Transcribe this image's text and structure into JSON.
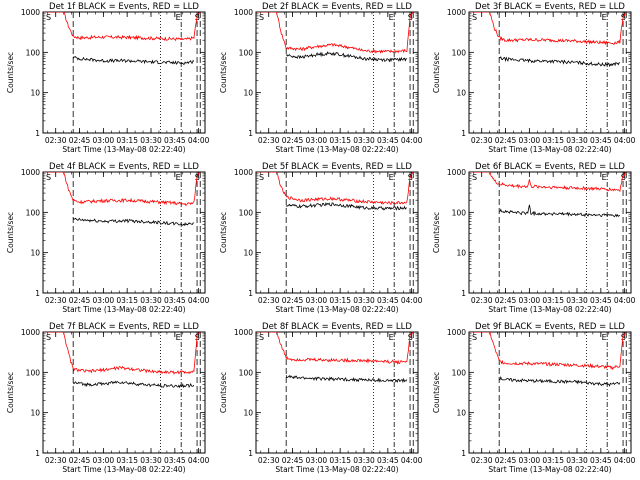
{
  "figure": {
    "colors": {
      "events": "#000000",
      "lld": "#ff0000",
      "axes": "#000000",
      "background": "#ffffff"
    }
  },
  "chart_data": [
    {
      "type": "line",
      "title": "Det 1f BLACK = Events, RED = LLD",
      "xlabel": "Start Time (13-May-08 02:22:40)",
      "ylabel": "Counts/sec",
      "ylog": true,
      "ylim": [
        1,
        1000
      ],
      "yticks": [
        "1",
        "10",
        "100",
        "1000"
      ],
      "xlim": [
        "02:22",
        "04:04"
      ],
      "xticks": [
        "02:30",
        "02:45",
        "03:00",
        "03:15",
        "03:30",
        "03:45",
        "04:00"
      ],
      "markers": [
        {
          "time": "02:41",
          "style": "dash",
          "label": ""
        },
        {
          "time": "03:36",
          "style": "dot",
          "label": ""
        },
        {
          "time": "03:49",
          "style": "dashdot",
          "label": "E"
        },
        {
          "time": "03:59",
          "style": "dash",
          "label": ""
        },
        {
          "time": "04:01",
          "style": "dash",
          "label": "S"
        }
      ],
      "series": [
        {
          "name": "LLD",
          "color": "#ff0000",
          "x": [
            "02:23",
            "02:30",
            "02:35",
            "02:38",
            "02:41",
            "02:45",
            "03:00",
            "03:15",
            "03:30",
            "03:45",
            "03:52",
            "03:57",
            "03:59",
            "04:01"
          ],
          "y": [
            1000,
            1000,
            1000,
            450,
            250,
            230,
            240,
            235,
            225,
            215,
            210,
            230,
            800,
            1000
          ]
        },
        {
          "name": "Events",
          "color": "#000000",
          "x": [
            "02:41",
            "02:45",
            "03:00",
            "03:15",
            "03:30",
            "03:45",
            "03:52",
            "03:57"
          ],
          "y": [
            75,
            70,
            62,
            62,
            58,
            55,
            55,
            60
          ]
        }
      ]
    },
    {
      "type": "line",
      "title": "Det 2f BLACK = Events, RED = LLD",
      "xlabel": "Start Time (13-May-08 02:22:40)",
      "ylabel": "Counts/sec",
      "ylog": true,
      "ylim": [
        1,
        1000
      ],
      "yticks": [
        "1",
        "10",
        "100",
        "1000"
      ],
      "xlim": [
        "02:22",
        "04:04"
      ],
      "xticks": [
        "02:30",
        "02:45",
        "03:00",
        "03:15",
        "03:30",
        "03:45",
        "04:00"
      ],
      "markers": [
        {
          "time": "02:41",
          "style": "dash",
          "label": ""
        },
        {
          "time": "03:36",
          "style": "dot",
          "label": ""
        },
        {
          "time": "03:49",
          "style": "dashdot",
          "label": "E"
        },
        {
          "time": "03:59",
          "style": "dash",
          "label": ""
        },
        {
          "time": "04:01",
          "style": "dash",
          "label": "S"
        }
      ],
      "series": [
        {
          "name": "LLD",
          "color": "#ff0000",
          "x": [
            "02:23",
            "02:30",
            "02:35",
            "02:38",
            "02:41",
            "02:50",
            "03:00",
            "03:10",
            "03:20",
            "03:30",
            "03:45",
            "03:57",
            "03:59",
            "04:01"
          ],
          "y": [
            1000,
            1000,
            1000,
            300,
            130,
            120,
            140,
            155,
            135,
            110,
            105,
            110,
            800,
            1000
          ]
        },
        {
          "name": "Events",
          "color": "#000000",
          "x": [
            "02:41",
            "02:50",
            "03:00",
            "03:10",
            "03:20",
            "03:30",
            "03:45",
            "03:57"
          ],
          "y": [
            85,
            75,
            88,
            95,
            82,
            70,
            65,
            68
          ]
        }
      ]
    },
    {
      "type": "line",
      "title": "Det 3f BLACK = Events, RED = LLD",
      "xlabel": "Start Time (13-May-08 02:22:40)",
      "ylabel": "Counts/sec",
      "ylog": true,
      "ylim": [
        1,
        1000
      ],
      "yticks": [
        "1",
        "10",
        "100",
        "1000"
      ],
      "xlim": [
        "02:22",
        "04:04"
      ],
      "xticks": [
        "02:30",
        "02:45",
        "03:00",
        "03:15",
        "03:30",
        "03:45",
        "04:00"
      ],
      "markers": [
        {
          "time": "02:41",
          "style": "dash",
          "label": ""
        },
        {
          "time": "03:36",
          "style": "dot",
          "label": ""
        },
        {
          "time": "03:49",
          "style": "dashdot",
          "label": "E"
        },
        {
          "time": "03:59",
          "style": "dash",
          "label": ""
        },
        {
          "time": "04:01",
          "style": "dash",
          "label": "S"
        }
      ],
      "series": [
        {
          "name": "LLD",
          "color": "#ff0000",
          "x": [
            "02:23",
            "02:30",
            "02:35",
            "02:38",
            "02:41",
            "02:45",
            "03:00",
            "03:15",
            "03:30",
            "03:45",
            "03:52",
            "03:57",
            "03:59",
            "04:01"
          ],
          "y": [
            1000,
            1000,
            1000,
            400,
            230,
            200,
            205,
            200,
            190,
            175,
            170,
            180,
            800,
            1000
          ]
        },
        {
          "name": "Events",
          "color": "#000000",
          "x": [
            "02:41",
            "02:45",
            "03:00",
            "03:15",
            "03:30",
            "03:45",
            "03:52",
            "03:57"
          ],
          "y": [
            72,
            68,
            62,
            60,
            56,
            50,
            50,
            55
          ]
        }
      ]
    },
    {
      "type": "line",
      "title": "Det 4f BLACK = Events, RED = LLD",
      "xlabel": "Start Time (13-May-08 02:22:40)",
      "ylabel": "Counts/sec",
      "ylog": true,
      "ylim": [
        1,
        1000
      ],
      "yticks": [
        "1",
        "10",
        "100",
        "1000"
      ],
      "xlim": [
        "02:22",
        "04:04"
      ],
      "xticks": [
        "02:30",
        "02:45",
        "03:00",
        "03:15",
        "03:30",
        "03:45",
        "04:00"
      ],
      "markers": [
        {
          "time": "02:41",
          "style": "dash",
          "label": ""
        },
        {
          "time": "03:36",
          "style": "dot",
          "label": ""
        },
        {
          "time": "03:49",
          "style": "dashdot",
          "label": "E"
        },
        {
          "time": "03:59",
          "style": "dash",
          "label": ""
        },
        {
          "time": "04:01",
          "style": "dash",
          "label": "S"
        }
      ],
      "series": [
        {
          "name": "LLD",
          "color": "#ff0000",
          "x": [
            "02:23",
            "02:30",
            "02:35",
            "02:38",
            "02:41",
            "02:45",
            "03:00",
            "03:15",
            "03:30",
            "03:45",
            "03:52",
            "03:57",
            "03:59",
            "04:01"
          ],
          "y": [
            1000,
            1000,
            1000,
            380,
            200,
            180,
            195,
            200,
            185,
            170,
            160,
            170,
            800,
            1000
          ]
        },
        {
          "name": "Events",
          "color": "#000000",
          "x": [
            "02:41",
            "02:45",
            "03:00",
            "03:15",
            "03:30",
            "03:45",
            "03:52",
            "03:57"
          ],
          "y": [
            68,
            65,
            60,
            62,
            58,
            52,
            50,
            55
          ]
        }
      ]
    },
    {
      "type": "line",
      "title": "Det 5f BLACK = Events, RED = LLD",
      "xlabel": "Start Time (13-May-08 02:22:40)",
      "ylabel": "Counts/sec",
      "ylog": true,
      "ylim": [
        1,
        1000
      ],
      "yticks": [
        "1",
        "10",
        "100",
        "1000"
      ],
      "xlim": [
        "02:22",
        "04:04"
      ],
      "xticks": [
        "02:30",
        "02:45",
        "03:00",
        "03:15",
        "03:30",
        "03:45",
        "04:00"
      ],
      "markers": [
        {
          "time": "02:41",
          "style": "dash",
          "label": ""
        },
        {
          "time": "03:36",
          "style": "dot",
          "label": ""
        },
        {
          "time": "03:49",
          "style": "dashdot",
          "label": "E"
        },
        {
          "time": "03:59",
          "style": "dash",
          "label": ""
        },
        {
          "time": "04:01",
          "style": "dash",
          "label": "S"
        }
      ],
      "series": [
        {
          "name": "LLD",
          "color": "#ff0000",
          "x": [
            "02:23",
            "02:30",
            "02:35",
            "02:38",
            "02:41",
            "02:50",
            "03:00",
            "03:10",
            "03:20",
            "03:30",
            "03:45",
            "03:57",
            "03:59",
            "04:01"
          ],
          "y": [
            1000,
            1000,
            1000,
            400,
            240,
            200,
            210,
            220,
            200,
            185,
            170,
            175,
            800,
            1000
          ]
        },
        {
          "name": "Events",
          "color": "#000000",
          "x": [
            "02:41",
            "02:50",
            "03:00",
            "03:10",
            "03:20",
            "03:30",
            "03:45",
            "03:57"
          ],
          "y": [
            150,
            140,
            150,
            160,
            145,
            130,
            125,
            130
          ]
        }
      ]
    },
    {
      "type": "line",
      "title": "Det 6f BLACK = Events, RED = LLD",
      "xlabel": "Start Time (13-May-08 02:22:40)",
      "ylabel": "Counts/sec",
      "ylog": true,
      "ylim": [
        1,
        1000
      ],
      "yticks": [
        "1",
        "10",
        "100",
        "1000"
      ],
      "xlim": [
        "02:22",
        "04:04"
      ],
      "xticks": [
        "02:30",
        "02:45",
        "03:00",
        "03:15",
        "03:30",
        "03:45",
        "04:00"
      ],
      "markers": [
        {
          "time": "02:41",
          "style": "dash",
          "label": ""
        },
        {
          "time": "03:36",
          "style": "dot",
          "label": ""
        },
        {
          "time": "03:49",
          "style": "dashdot",
          "label": "E"
        },
        {
          "time": "03:59",
          "style": "dash",
          "label": ""
        },
        {
          "time": "04:01",
          "style": "dash",
          "label": "S"
        }
      ],
      "series": [
        {
          "name": "LLD",
          "color": "#ff0000",
          "x": [
            "02:23",
            "02:30",
            "02:35",
            "02:38",
            "02:41",
            "02:50",
            "02:59",
            "03:00",
            "03:01",
            "03:15",
            "03:30",
            "03:45",
            "03:57",
            "03:59",
            "04:01"
          ],
          "y": [
            1000,
            1000,
            1000,
            600,
            500,
            450,
            440,
            650,
            440,
            420,
            400,
            380,
            360,
            800,
            1000
          ]
        },
        {
          "name": "Events",
          "color": "#000000",
          "x": [
            "02:41",
            "02:50",
            "02:59",
            "03:00",
            "03:01",
            "03:15",
            "03:30",
            "03:45",
            "03:57"
          ],
          "y": [
            110,
            100,
            95,
            160,
            95,
            92,
            88,
            85,
            85
          ]
        }
      ]
    },
    {
      "type": "line",
      "title": "Det 7f BLACK = Events, RED = LLD",
      "xlabel": "Start Time (13-May-08 02:22:40)",
      "ylabel": "Counts/sec",
      "ylog": true,
      "ylim": [
        1,
        1000
      ],
      "yticks": [
        "1",
        "10",
        "100",
        "1000"
      ],
      "xlim": [
        "02:22",
        "04:04"
      ],
      "xticks": [
        "02:30",
        "02:45",
        "03:00",
        "03:15",
        "03:30",
        "03:45",
        "04:00"
      ],
      "markers": [
        {
          "time": "02:41",
          "style": "dash",
          "label": ""
        },
        {
          "time": "03:36",
          "style": "dot",
          "label": ""
        },
        {
          "time": "03:49",
          "style": "dashdot",
          "label": "E"
        },
        {
          "time": "03:59",
          "style": "dash",
          "label": ""
        },
        {
          "time": "04:01",
          "style": "dash",
          "label": "S"
        }
      ],
      "series": [
        {
          "name": "LLD",
          "color": "#ff0000",
          "x": [
            "02:23",
            "02:30",
            "02:35",
            "02:38",
            "02:41",
            "02:50",
            "03:00",
            "03:10",
            "03:20",
            "03:30",
            "03:45",
            "03:57",
            "03:59",
            "04:01"
          ],
          "y": [
            1000,
            1000,
            1000,
            300,
            120,
            105,
            115,
            130,
            120,
            105,
            100,
            105,
            800,
            1000
          ]
        },
        {
          "name": "Events",
          "color": "#000000",
          "x": [
            "02:41",
            "02:50",
            "03:00",
            "03:10",
            "03:20",
            "03:30",
            "03:45",
            "03:57"
          ],
          "y": [
            55,
            50,
            52,
            58,
            52,
            48,
            46,
            48
          ]
        }
      ]
    },
    {
      "type": "line",
      "title": "Det 8f BLACK = Events, RED = LLD",
      "xlabel": "Start Time (13-May-08 02:22:40)",
      "ylabel": "Counts/sec",
      "ylog": true,
      "ylim": [
        1,
        1000
      ],
      "yticks": [
        "1",
        "10",
        "100",
        "1000"
      ],
      "xlim": [
        "02:22",
        "04:04"
      ],
      "xticks": [
        "02:30",
        "02:45",
        "03:00",
        "03:15",
        "03:30",
        "03:45",
        "04:00"
      ],
      "markers": [
        {
          "time": "02:41",
          "style": "dash",
          "label": ""
        },
        {
          "time": "03:36",
          "style": "dot",
          "label": ""
        },
        {
          "time": "03:49",
          "style": "dashdot",
          "label": "E"
        },
        {
          "time": "03:59",
          "style": "dash",
          "label": ""
        },
        {
          "time": "04:01",
          "style": "dash",
          "label": "S"
        }
      ],
      "series": [
        {
          "name": "LLD",
          "color": "#ff0000",
          "x": [
            "02:23",
            "02:30",
            "02:35",
            "02:38",
            "02:41",
            "02:45",
            "03:00",
            "03:15",
            "03:30",
            "03:45",
            "03:52",
            "03:57",
            "03:59",
            "04:01"
          ],
          "y": [
            1000,
            1000,
            1000,
            450,
            230,
            210,
            205,
            200,
            195,
            185,
            180,
            190,
            800,
            1000
          ]
        },
        {
          "name": "Events",
          "color": "#000000",
          "x": [
            "02:41",
            "02:45",
            "03:00",
            "03:15",
            "03:30",
            "03:45",
            "03:52",
            "03:57"
          ],
          "y": [
            80,
            75,
            70,
            68,
            65,
            62,
            62,
            66
          ]
        }
      ]
    },
    {
      "type": "line",
      "title": "Det 9f BLACK = Events, RED = LLD",
      "xlabel": "Start Time (13-May-08 02:22:40)",
      "ylabel": "Counts/sec",
      "ylog": true,
      "ylim": [
        1,
        1000
      ],
      "yticks": [
        "1",
        "10",
        "100",
        "1000"
      ],
      "xlim": [
        "02:22",
        "04:04"
      ],
      "xticks": [
        "02:30",
        "02:45",
        "03:00",
        "03:15",
        "03:30",
        "03:45",
        "04:00"
      ],
      "markers": [
        {
          "time": "02:41",
          "style": "dash",
          "label": ""
        },
        {
          "time": "03:36",
          "style": "dot",
          "label": ""
        },
        {
          "time": "03:49",
          "style": "dashdot",
          "label": "E"
        },
        {
          "time": "03:59",
          "style": "dash",
          "label": ""
        },
        {
          "time": "04:01",
          "style": "dash",
          "label": "S"
        }
      ],
      "series": [
        {
          "name": "LLD",
          "color": "#ff0000",
          "x": [
            "02:23",
            "02:30",
            "02:35",
            "02:38",
            "02:41",
            "02:45",
            "03:00",
            "03:15",
            "03:30",
            "03:45",
            "03:52",
            "03:57",
            "03:59",
            "04:01"
          ],
          "y": [
            1000,
            1000,
            1000,
            420,
            190,
            170,
            165,
            160,
            150,
            140,
            130,
            145,
            800,
            1000
          ]
        },
        {
          "name": "Events",
          "color": "#000000",
          "x": [
            "02:41",
            "02:45",
            "03:00",
            "03:15",
            "03:30",
            "03:45",
            "03:52",
            "03:57"
          ],
          "y": [
            72,
            66,
            62,
            60,
            58,
            52,
            50,
            56
          ]
        }
      ]
    }
  ]
}
